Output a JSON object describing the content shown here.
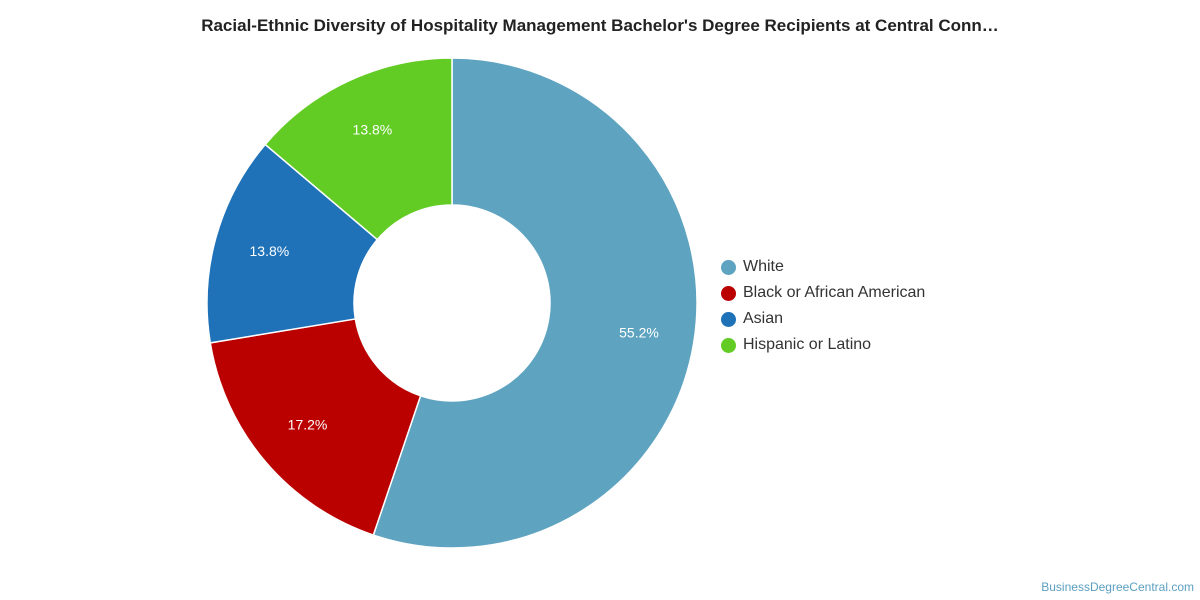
{
  "chart_data": {
    "type": "pie",
    "donut": true,
    "title": "Racial-Ethnic Diversity of Hospitality Management Bachelor's Degree Recipients at Central Conn…",
    "slices": [
      {
        "name": "White",
        "value": 55.2,
        "label": "55.2%",
        "color": "#5ea3c0"
      },
      {
        "name": "Black or African American",
        "value": 17.2,
        "label": "17.2%",
        "color": "#bb0000"
      },
      {
        "name": "Asian",
        "value": 13.8,
        "label": "13.8%",
        "color": "#1f72b8"
      },
      {
        "name": "Hispanic or Latino",
        "value": 13.8,
        "label": "13.8%",
        "color": "#62cc24"
      }
    ],
    "legend_position": "right"
  },
  "footer": {
    "source": "BusinessDegreeCentral.com"
  }
}
